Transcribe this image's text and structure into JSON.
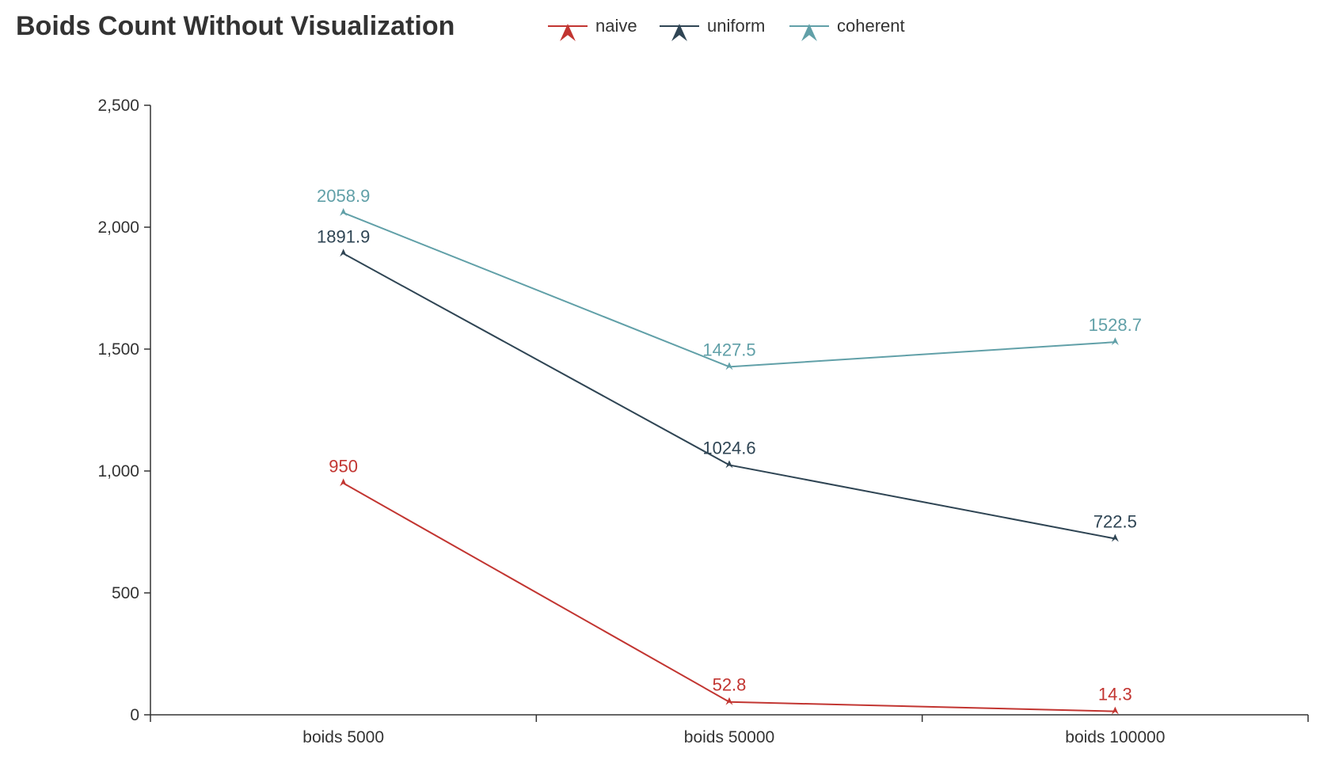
{
  "chart_data": {
    "type": "line",
    "title": "Boids Count Without Visualization",
    "xlabel": "",
    "ylabel": "",
    "categories": [
      "boids 5000",
      "boids 50000",
      "boids 100000"
    ],
    "ylim": [
      0,
      2500
    ],
    "yticks": [
      0,
      500,
      1000,
      1500,
      2000,
      2500
    ],
    "ytick_labels": [
      "0",
      "500",
      "1,000",
      "1,500",
      "2,000",
      "2,500"
    ],
    "grid": false,
    "legend_position": "top",
    "marker": "arrow",
    "series": [
      {
        "name": "naive",
        "values": [
          950,
          52.8,
          14.3
        ],
        "labels": [
          "950",
          "52.8",
          "14.3"
        ],
        "color": "#c23531"
      },
      {
        "name": "uniform",
        "values": [
          1891.9,
          1024.6,
          722.5
        ],
        "labels": [
          "1891.9",
          "1024.6",
          "722.5"
        ],
        "color": "#2f4554"
      },
      {
        "name": "coherent",
        "values": [
          2058.9,
          1427.5,
          1528.7
        ],
        "labels": [
          "2058.9",
          "1427.5",
          "1528.7"
        ],
        "color": "#61a0a8"
      }
    ]
  }
}
